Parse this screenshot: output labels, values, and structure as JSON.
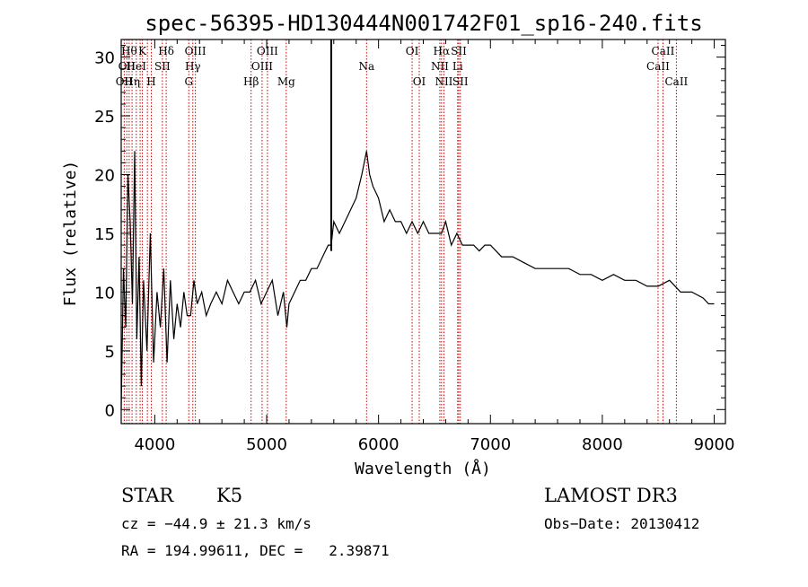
{
  "chart_data": {
    "type": "line",
    "title": "spec-56395-HD130444N001742F01_sp16-240.fits",
    "xlabel": "Wavelength (Å)",
    "ylabel": "Flux (relative)",
    "xlim": [
      3700,
      9100
    ],
    "ylim": [
      -1.2,
      31.5
    ],
    "xticks": [
      4000,
      5000,
      6000,
      7000,
      8000,
      9000
    ],
    "yticks": [
      0,
      5,
      10,
      15,
      20,
      25,
      30
    ],
    "grid": false,
    "series": [
      {
        "x": [
          3700,
          3720,
          3740,
          3760,
          3780,
          3800,
          3820,
          3840,
          3860,
          3880,
          3900,
          3930,
          3960,
          3990,
          4020,
          4050,
          4080,
          4110,
          4140,
          4170,
          4200,
          4230,
          4260,
          4290,
          4320,
          4350,
          4380,
          4420,
          4460,
          4500,
          4550,
          4600,
          4650,
          4700,
          4750,
          4800,
          4850,
          4900,
          4950,
          5000,
          5050,
          5100,
          5150,
          5180,
          5200,
          5250,
          5300,
          5350,
          5400,
          5450,
          5500,
          5550,
          5577,
          5600,
          5650,
          5700,
          5750,
          5800,
          5850,
          5893,
          5920,
          5950,
          6000,
          6050,
          6100,
          6150,
          6200,
          6250,
          6300,
          6350,
          6400,
          6450,
          6500,
          6563,
          6600,
          6650,
          6700,
          6750,
          6800,
          6850,
          6900,
          6950,
          7000,
          7100,
          7200,
          7300,
          7400,
          7500,
          7600,
          7700,
          7800,
          7900,
          8000,
          8100,
          8200,
          8300,
          8400,
          8500,
          8600,
          8700,
          8800,
          8900,
          8950,
          9000
        ],
        "y": [
          0,
          12,
          7,
          20,
          16,
          9,
          22,
          6,
          13,
          2,
          11,
          5,
          15,
          4,
          10,
          7,
          12,
          4,
          11,
          6,
          9,
          7,
          10,
          8,
          8,
          11,
          9,
          10,
          8,
          9,
          10,
          9,
          11,
          10,
          9,
          10,
          10,
          11,
          9,
          10,
          11,
          8,
          10,
          7,
          9,
          10,
          11,
          11,
          12,
          12,
          13,
          14,
          14,
          16,
          15,
          16,
          17,
          18,
          20,
          22,
          20,
          19,
          18,
          16,
          17,
          16,
          16,
          15,
          16,
          15,
          16,
          15,
          15,
          15,
          16,
          14,
          15,
          14,
          14,
          14,
          13.5,
          14,
          14,
          13,
          13,
          12.5,
          12,
          12,
          12,
          12,
          11.5,
          11.5,
          11,
          11.5,
          11,
          11,
          10.5,
          10.5,
          11,
          10,
          10,
          9.5,
          9,
          9
        ]
      }
    ],
    "spike": {
      "x": 5577,
      "y": 31.5
    },
    "line_markers": [
      {
        "x": 3727,
        "label": "OII",
        "row": 2
      },
      {
        "x": 3750,
        "label": "OII",
        "row": 1
      },
      {
        "x": 3771,
        "label": "Hθ",
        "row": 0
      },
      {
        "x": 3797,
        "label": "Hη",
        "row": 2
      },
      {
        "x": 3835,
        "label": "HeI",
        "row": 1
      },
      {
        "x": 3869,
        "label": "",
        "row": -1
      },
      {
        "x": 3889,
        "label": "K",
        "row": 0
      },
      {
        "x": 3934,
        "label": "",
        "row": -1
      },
      {
        "x": 3969,
        "label": "H",
        "row": 2
      },
      {
        "x": 4068,
        "label": "SII",
        "row": 1
      },
      {
        "x": 4102,
        "label": "Hδ",
        "row": 0
      },
      {
        "x": 4304,
        "label": "G",
        "row": 2
      },
      {
        "x": 4340,
        "label": "Hγ",
        "row": 1
      },
      {
        "x": 4363,
        "label": "OIII",
        "row": 0
      },
      {
        "x": 4861,
        "label": "Hβ",
        "row": 2
      },
      {
        "x": 4959,
        "label": "OIII",
        "row": 1
      },
      {
        "x": 5007,
        "label": "OIII",
        "row": 0
      },
      {
        "x": 5175,
        "label": "Mg",
        "row": 2
      },
      {
        "x": 5893,
        "label": "Na",
        "row": 1
      },
      {
        "x": 6300,
        "label": "OI",
        "row": 0
      },
      {
        "x": 6364,
        "label": "OI",
        "row": 2
      },
      {
        "x": 6548,
        "label": "NII",
        "row": 1
      },
      {
        "x": 6563,
        "label": "Hα",
        "row": 0
      },
      {
        "x": 6584,
        "label": "NII",
        "row": 2
      },
      {
        "x": 6707,
        "label": "Li",
        "row": 1
      },
      {
        "x": 6717,
        "label": "SII",
        "row": 0
      },
      {
        "x": 6731,
        "label": "SII",
        "row": 2
      },
      {
        "x": 8498,
        "label": "CaII",
        "row": 1
      },
      {
        "x": 8542,
        "label": "CaII",
        "row": 0
      },
      {
        "x": 8662,
        "label": "CaII",
        "row": 2
      }
    ],
    "marker_color": "#cc0000"
  },
  "info": {
    "class": "STAR",
    "subclass": "K5",
    "survey": "LAMOST DR3",
    "cz": "cz = −44.9 ± 21.3 km/s",
    "obs_date": "Obs−Date: 20130412",
    "radec": "RA = 194.99611, DEC =   2.39871"
  }
}
